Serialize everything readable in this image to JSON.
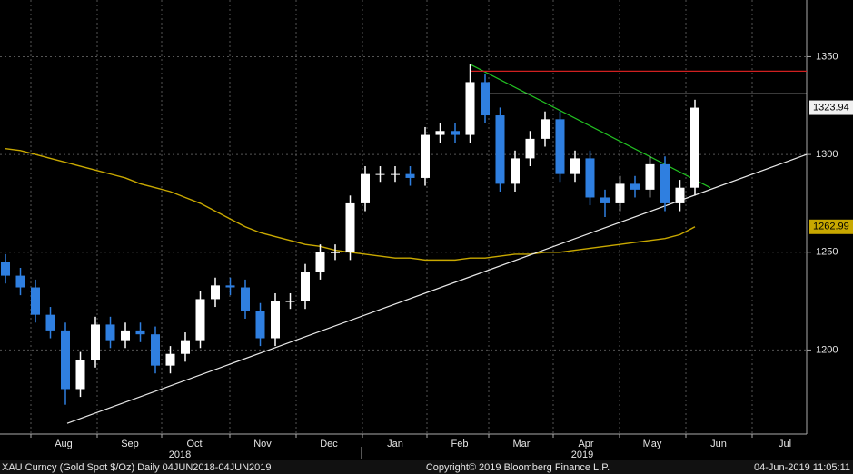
{
  "chart_data": {
    "type": "candlestick",
    "ylim": [
      1157,
      1379
    ],
    "yticks": [
      1200,
      1250,
      1300,
      1350
    ],
    "grid": true,
    "months": [
      "Aug",
      "Sep",
      "Oct",
      "Nov",
      "Dec",
      "Jan",
      "Feb",
      "Mar",
      "Apr",
      "May",
      "Jun",
      "Jul"
    ],
    "years": [
      "2018",
      "2019"
    ],
    "up_color": "#ffffff",
    "down_color": "#2f7fe0",
    "open": [
      1245,
      1238,
      1232,
      1218,
      1210,
      1180,
      1195,
      1213,
      1205,
      1210,
      1208,
      1192,
      1198,
      1205,
      1226,
      1233,
      1232,
      1220,
      1206,
      1225,
      1225,
      1240,
      1250,
      1250,
      1275,
      1290,
      1290,
      1290,
      1288,
      1310,
      1312,
      1310,
      1337,
      1320,
      1285,
      1298,
      1308,
      1318,
      1290,
      1298,
      1278,
      1275,
      1285,
      1282,
      1295,
      1275,
      1283
    ],
    "high": [
      1249,
      1242,
      1236,
      1222,
      1214,
      1199,
      1217,
      1217,
      1214,
      1214,
      1212,
      1202,
      1209,
      1230,
      1237,
      1237,
      1236,
      1224,
      1229,
      1229,
      1244,
      1254,
      1254,
      1279,
      1294,
      1294,
      1294,
      1294,
      1314,
      1316,
      1316,
      1346,
      1341,
      1324,
      1302,
      1312,
      1322,
      1322,
      1302,
      1302,
      1282,
      1289,
      1289,
      1299,
      1299,
      1287,
      1328
    ],
    "low": [
      1234,
      1228,
      1214,
      1206,
      1172,
      1176,
      1191,
      1201,
      1201,
      1204,
      1188,
      1188,
      1194,
      1201,
      1222,
      1228,
      1216,
      1202,
      1202,
      1221,
      1221,
      1236,
      1246,
      1246,
      1271,
      1286,
      1286,
      1284,
      1284,
      1306,
      1306,
      1306,
      1316,
      1281,
      1281,
      1294,
      1304,
      1286,
      1286,
      1274,
      1268,
      1271,
      1278,
      1278,
      1271,
      1271,
      1279
    ],
    "close": [
      1238,
      1232,
      1218,
      1210,
      1180,
      1195,
      1213,
      1205,
      1210,
      1208,
      1192,
      1198,
      1205,
      1226,
      1233,
      1232,
      1220,
      1206,
      1225,
      1225,
      1240,
      1250,
      1250,
      1275,
      1290,
      1290,
      1290,
      1288,
      1310,
      1312,
      1310,
      1337,
      1320,
      1285,
      1298,
      1308,
      1318,
      1290,
      1298,
      1278,
      1275,
      1285,
      1282,
      1295,
      1275,
      1283,
      1323.94
    ],
    "moving_average": {
      "color": "#c8a800",
      "values": [
        1303,
        1302,
        1300,
        1298,
        1296,
        1294,
        1292,
        1290,
        1288,
        1285,
        1283,
        1281,
        1278,
        1275,
        1271,
        1267,
        1263,
        1260,
        1258,
        1256,
        1254,
        1253,
        1251,
        1250,
        1249,
        1248,
        1247,
        1247,
        1246,
        1246,
        1246,
        1247,
        1247,
        1248,
        1249,
        1249,
        1250,
        1250,
        1251,
        1252,
        1253,
        1254,
        1255,
        1256,
        1257,
        1259,
        1262.99
      ]
    },
    "trend_lines": [
      {
        "color": "#e8e8e8",
        "start": 1162.5,
        "end": 1300
      },
      {
        "color": "#22c022",
        "start": 1346,
        "end": 1283
      },
      {
        "color": "#d02020",
        "start": 1342.6,
        "end": 1342.6
      },
      {
        "color": "#e8e8e8",
        "start": 1331,
        "end": 1331
      }
    ],
    "footer_left": "XAU Curncy (Gold Spot  $/Oz)  Daily 04JUN2018-04JUN2019",
    "footer_center": "Copyright© 2019 Bloomberg Finance L.P.",
    "footer_right": "04-Jun-2019 11:05:11"
  }
}
